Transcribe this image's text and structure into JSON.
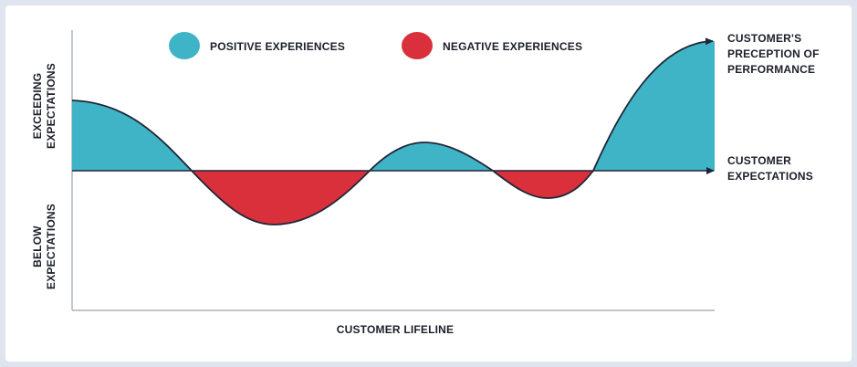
{
  "legend": {
    "positive_label": "POSITIVE EXPERIENCES",
    "negative_label": "NEGATIVE EXPERIENCES"
  },
  "axes": {
    "y_top_line1": "EXCEEDING",
    "y_top_line2": "EXPECTATIONS",
    "y_bottom_line1": "BELOW",
    "y_bottom_line2": "EXPECTATIONS",
    "x_label": "CUSTOMER LIFELINE"
  },
  "right_labels": {
    "perception_line1": "CUSTOMER'S",
    "perception_line2": "PRECEPTION OF",
    "perception_line3": "PERFORMANCE",
    "expectations_line1": "CUSTOMER",
    "expectations_line2": "EXPECTATIONS"
  },
  "colors": {
    "positive": "#3fb4c6",
    "negative": "#d9303c",
    "line": "#1f2637",
    "axis": "#9aa3b0"
  }
}
